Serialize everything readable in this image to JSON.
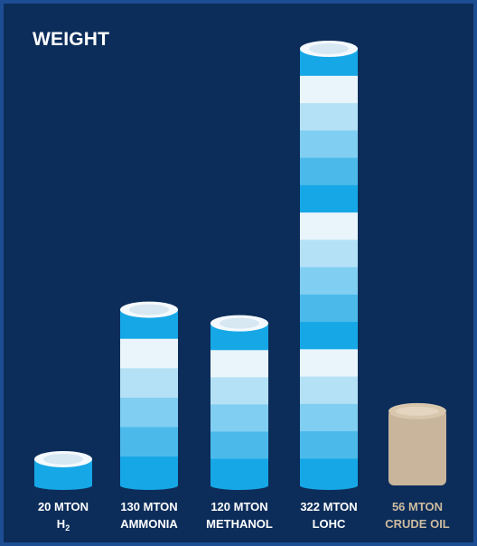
{
  "title": "WEIGHT",
  "colors": {
    "background": "#0c2d5a",
    "border": "#1d4d92",
    "blue_dark": "#16a7e6",
    "blue_light": "#e9f4fb",
    "crude_oil": "#c8b59b",
    "crude_oil_cap": "#d8c7ad"
  },
  "chart_data": {
    "type": "bar",
    "title": "WEIGHT",
    "unit": "MTON",
    "categories": [
      "H2",
      "AMMONIA",
      "METHANOL",
      "LOHC",
      "CRUDE OIL"
    ],
    "values": [
      20,
      130,
      120,
      322,
      56
    ],
    "value_labels": [
      "20 MTON",
      "130 MTON",
      "120 MTON",
      "322 MTON",
      "56 MTON"
    ],
    "bar_style": [
      "blue",
      "blue",
      "blue",
      "blue",
      "beige"
    ],
    "ylim": [
      0,
      322
    ],
    "grid": false,
    "legend": "none"
  },
  "labels": [
    {
      "value": "20 MTON",
      "name_main": "H",
      "name_sub": "2"
    },
    {
      "value": "130 MTON",
      "name_main": "AMMONIA",
      "name_sub": ""
    },
    {
      "value": "120 MTON",
      "name_main": "METHANOL",
      "name_sub": ""
    },
    {
      "value": "322 MTON",
      "name_main": "LOHC",
      "name_sub": ""
    },
    {
      "value": "56 MTON",
      "name_main": "CRUDE OIL",
      "name_sub": ""
    }
  ]
}
